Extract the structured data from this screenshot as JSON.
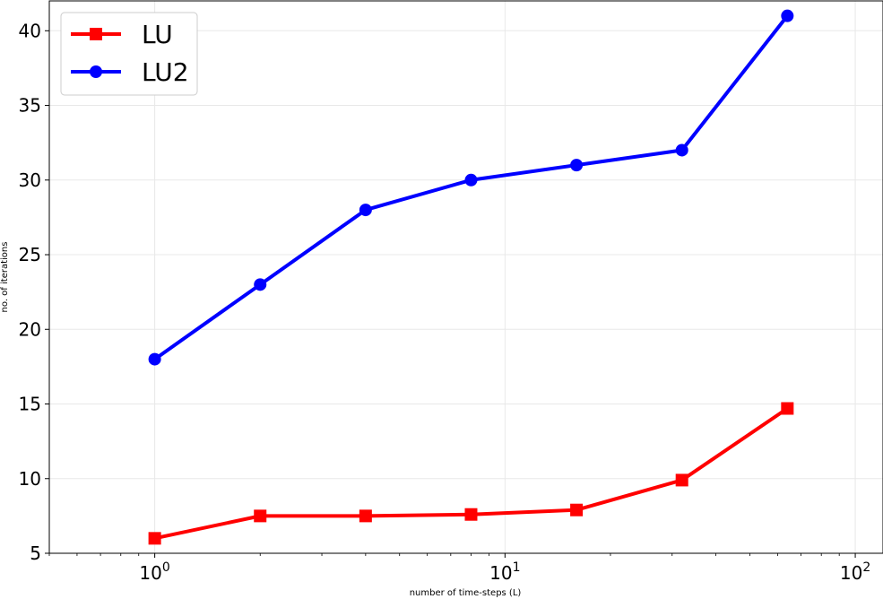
{
  "chart_data": {
    "type": "line",
    "xscale": "log",
    "xlim": [
      0.5,
      120
    ],
    "ylim": [
      5,
      42
    ],
    "xlabel": "number of time-steps (L)",
    "ylabel": "no. of iterations",
    "grid": true,
    "legend_position": "top-left",
    "x_ticks": [
      {
        "value": 1,
        "base": "10",
        "exp": "0"
      },
      {
        "value": 10,
        "base": "10",
        "exp": "1"
      },
      {
        "value": 100,
        "base": "10",
        "exp": "2"
      }
    ],
    "y_ticks": [
      5,
      10,
      15,
      20,
      25,
      30,
      35,
      40
    ],
    "x": [
      1,
      2,
      4,
      8,
      16,
      32,
      64
    ],
    "series": [
      {
        "name": "LU",
        "color": "#ff0000",
        "marker": "square",
        "values": [
          6,
          7.5,
          7.5,
          7.6,
          7.9,
          9.9,
          14.7
        ]
      },
      {
        "name": "LU2",
        "color": "#0000ff",
        "marker": "circle",
        "values": [
          18,
          23,
          28,
          30,
          31,
          32,
          41
        ]
      }
    ]
  }
}
